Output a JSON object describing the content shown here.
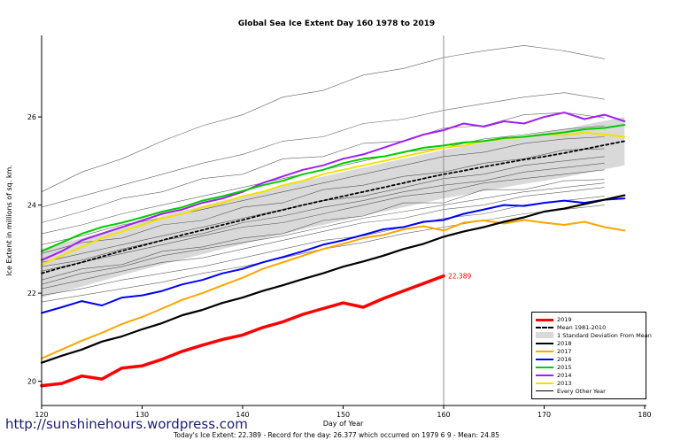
{
  "page": {
    "title": "Global Sea Ice Extent Day 160 1978 to 2019",
    "footer_url": "http://sunshinehours.wordpress.com",
    "caption": "Today's Ice Extent: 22.389 - Record for the day: 26.377 which occurred on 1979 6 9 - Mean: 24.85"
  },
  "chart_data": {
    "type": "line",
    "title": "Global Sea Ice Extent Day 160 1978 to 2019",
    "xlabel": "Day of Year",
    "ylabel": "Ice Extent in millions of sq. km.",
    "xlim": [
      120,
      180
    ],
    "ylim": [
      19.45,
      27.85
    ],
    "xticks": [
      120,
      130,
      140,
      150,
      160,
      170,
      180
    ],
    "yticks": [
      20,
      22,
      24,
      26
    ],
    "grid": false,
    "legend_position": "bottom-right",
    "vline_x": 160,
    "annotation": {
      "x": 160,
      "y": 22.389,
      "text": "22.389",
      "color": "#ff0000"
    },
    "band": {
      "label": "1 Standard Deviation From Mean",
      "from_series": "Mean 1981-2010",
      "half_width": 0.55,
      "color": "#d9d9d9"
    },
    "background_style": {
      "color": "#2b2b2b",
      "width": 0.6,
      "opacity": 0.75,
      "label": "Every Other Year"
    },
    "draw_order": [
      "Mean 1981-2010",
      "2013",
      "2014",
      "2015",
      "2016",
      "2017",
      "2018",
      "2019"
    ],
    "series": [
      {
        "name": "2019",
        "color": "#ff0000",
        "width": 3.5,
        "x_start": 120,
        "x_step": 2,
        "values": [
          19.9,
          19.95,
          20.12,
          20.05,
          20.3,
          20.35,
          20.5,
          20.68,
          20.82,
          20.95,
          21.05,
          21.22,
          21.35,
          21.52,
          21.65,
          21.78,
          21.68,
          21.88,
          22.05,
          22.22,
          22.389
        ]
      },
      {
        "name": "Mean 1981-2010",
        "color": "#000000",
        "width": 1.8,
        "dash": "3,3",
        "x_start": 120,
        "x_step": 2,
        "values": [
          22.45,
          22.58,
          22.7,
          22.83,
          22.96,
          23.08,
          23.2,
          23.32,
          23.43,
          23.55,
          23.66,
          23.78,
          23.89,
          24.0,
          24.1,
          24.2,
          24.3,
          24.4,
          24.5,
          24.6,
          24.7,
          24.78,
          24.87,
          24.95,
          25.03,
          25.1,
          25.18,
          25.27,
          25.36,
          25.45
        ]
      },
      {
        "name": "2018",
        "color": "#000000",
        "width": 2.2,
        "x_start": 120,
        "x_step": 2,
        "values": [
          20.42,
          20.58,
          20.72,
          20.9,
          21.02,
          21.18,
          21.32,
          21.5,
          21.62,
          21.78,
          21.9,
          22.05,
          22.18,
          22.32,
          22.45,
          22.6,
          22.72,
          22.85,
          23.0,
          23.12,
          23.28,
          23.4,
          23.5,
          23.62,
          23.72,
          23.85,
          23.92,
          24.02,
          24.12,
          24.22
        ]
      },
      {
        "name": "2017",
        "color": "#ffa500",
        "width": 2,
        "x_start": 120,
        "x_step": 2,
        "values": [
          20.52,
          20.72,
          20.92,
          21.1,
          21.3,
          21.46,
          21.65,
          21.85,
          22.0,
          22.18,
          22.35,
          22.55,
          22.7,
          22.85,
          23.0,
          23.12,
          23.25,
          23.32,
          23.45,
          23.52,
          23.42,
          23.6,
          23.65,
          23.58,
          23.66,
          23.6,
          23.55,
          23.62,
          23.5,
          23.42
        ]
      },
      {
        "name": "2016",
        "color": "#0000ff",
        "width": 2,
        "x_start": 120,
        "x_step": 2,
        "values": [
          21.55,
          21.68,
          21.82,
          21.72,
          21.9,
          21.95,
          22.05,
          22.2,
          22.3,
          22.45,
          22.55,
          22.7,
          22.82,
          22.95,
          23.1,
          23.2,
          23.32,
          23.45,
          23.5,
          23.62,
          23.66,
          23.8,
          23.9,
          24.0,
          23.98,
          24.05,
          24.1,
          24.05,
          24.12,
          24.15
        ]
      },
      {
        "name": "2015",
        "color": "#00cc00",
        "width": 2,
        "x_start": 120,
        "x_step": 2,
        "values": [
          22.95,
          23.15,
          23.35,
          23.5,
          23.6,
          23.72,
          23.85,
          23.95,
          24.1,
          24.2,
          24.32,
          24.45,
          24.55,
          24.7,
          24.8,
          24.95,
          25.05,
          25.1,
          25.2,
          25.3,
          25.35,
          25.42,
          25.45,
          25.52,
          25.55,
          25.6,
          25.65,
          25.72,
          25.75,
          25.82
        ]
      },
      {
        "name": "2014",
        "color": "#a020f0",
        "width": 2,
        "x_start": 120,
        "x_step": 2,
        "values": [
          22.75,
          22.95,
          23.2,
          23.35,
          23.5,
          23.65,
          23.8,
          23.9,
          24.05,
          24.15,
          24.3,
          24.5,
          24.65,
          24.8,
          24.9,
          25.05,
          25.15,
          25.3,
          25.45,
          25.6,
          25.7,
          25.85,
          25.78,
          25.9,
          25.85,
          26.0,
          26.1,
          25.95,
          26.05,
          25.9
        ]
      },
      {
        "name": "2013",
        "color": "#f5e000",
        "width": 2,
        "x_start": 120,
        "x_step": 2,
        "values": [
          22.65,
          22.85,
          23.05,
          23.25,
          23.4,
          23.55,
          23.7,
          23.8,
          23.95,
          24.05,
          24.2,
          24.3,
          24.45,
          24.55,
          24.7,
          24.8,
          24.9,
          25.0,
          25.1,
          25.2,
          25.3,
          25.35,
          25.45,
          25.5,
          25.55,
          25.6,
          25.58,
          25.65,
          25.6,
          25.55
        ]
      }
    ],
    "background_series": [
      {
        "x_start": 120,
        "x_step": 4,
        "values": [
          24.3,
          24.75,
          25.05,
          25.45,
          25.8,
          26.05,
          26.45,
          26.6,
          26.95,
          27.1,
          27.35,
          27.5,
          27.62,
          27.5,
          27.32
        ]
      },
      {
        "x_start": 120,
        "x_step": 4,
        "values": [
          23.95,
          24.2,
          24.45,
          24.7,
          24.95,
          25.15,
          25.45,
          25.55,
          25.85,
          25.95,
          26.15,
          26.3,
          26.45,
          26.55,
          26.4
        ]
      },
      {
        "x_start": 120,
        "x_step": 4,
        "values": [
          23.6,
          23.85,
          24.15,
          24.3,
          24.6,
          24.7,
          25.05,
          25.1,
          25.4,
          25.45,
          25.75,
          25.8,
          26.05,
          26.1,
          25.98
        ]
      },
      {
        "x_start": 120,
        "x_step": 4,
        "values": [
          23.35,
          23.55,
          23.8,
          24.0,
          24.2,
          24.4,
          24.6,
          24.8,
          25.0,
          25.2,
          25.3,
          25.5,
          25.6,
          25.72,
          25.8
        ]
      },
      {
        "x_start": 120,
        "x_step": 4,
        "values": [
          23.1,
          23.3,
          23.55,
          23.7,
          23.9,
          24.1,
          24.3,
          24.5,
          24.7,
          24.9,
          25.1,
          25.2,
          25.4,
          25.5,
          25.55
        ]
      },
      {
        "x_start": 120,
        "x_step": 4,
        "values": [
          22.9,
          23.15,
          23.25,
          23.55,
          23.65,
          23.95,
          24.05,
          24.35,
          24.45,
          24.65,
          24.75,
          24.95,
          25.05,
          25.25,
          25.28
        ]
      },
      {
        "x_start": 120,
        "x_step": 4,
        "values": [
          22.7,
          22.9,
          23.1,
          23.3,
          23.5,
          23.7,
          23.9,
          24.1,
          24.2,
          24.4,
          24.6,
          24.7,
          24.9,
          25.0,
          25.1
        ]
      },
      {
        "x_start": 120,
        "x_step": 4,
        "values": [
          22.5,
          22.7,
          22.9,
          23.1,
          23.3,
          23.5,
          23.6,
          23.8,
          24.0,
          24.2,
          24.3,
          24.5,
          24.6,
          24.7,
          24.8
        ]
      },
      {
        "x_start": 120,
        "x_step": 4,
        "values": [
          22.3,
          22.55,
          22.65,
          22.95,
          23.05,
          23.25,
          23.35,
          23.65,
          23.75,
          24.05,
          24.05,
          24.35,
          24.35,
          24.55,
          24.58
        ]
      },
      {
        "x_start": 120,
        "x_step": 4,
        "values": [
          22.1,
          22.3,
          22.5,
          22.7,
          22.8,
          23.0,
          23.2,
          23.4,
          23.6,
          23.7,
          23.9,
          24.0,
          24.2,
          24.3,
          24.4
        ]
      },
      {
        "x_start": 120,
        "x_step": 4,
        "values": [
          21.95,
          22.1,
          22.3,
          22.45,
          22.6,
          22.8,
          23.0,
          23.2,
          23.3,
          23.5,
          23.7,
          23.8,
          24.0,
          24.1,
          24.2
        ]
      },
      {
        "x_start": 120,
        "x_step": 4,
        "values": [
          21.8,
          21.95,
          22.1,
          22.25,
          22.45,
          22.6,
          22.8,
          23.0,
          23.15,
          23.35,
          23.5,
          23.65,
          23.8,
          23.9,
          24.0
        ]
      },
      {
        "x_start": 120,
        "x_step": 4,
        "values": [
          22.2,
          22.45,
          22.6,
          22.85,
          23.0,
          23.15,
          23.3,
          23.5,
          23.7,
          23.85,
          24.0,
          24.15,
          24.3,
          24.4,
          24.5
        ]
      },
      {
        "x_start": 120,
        "x_step": 4,
        "values": [
          22.6,
          22.75,
          23.0,
          23.2,
          23.35,
          23.6,
          23.75,
          23.95,
          24.1,
          24.3,
          24.45,
          24.55,
          24.75,
          24.85,
          24.95
        ]
      }
    ],
    "legend": {
      "items": [
        {
          "label": "2019",
          "swatch": "line",
          "color": "#ff0000",
          "thick": 3
        },
        {
          "label": "Mean 1981-2010",
          "swatch": "dashed-line",
          "color": "#000000",
          "thick": 2
        },
        {
          "label": "1 Standard Deviation From Mean",
          "swatch": "box",
          "color": "#d9d9d9"
        },
        {
          "label": "2018",
          "swatch": "line",
          "color": "#000000",
          "thick": 2
        },
        {
          "label": "2017",
          "swatch": "line",
          "color": "#ffa500",
          "thick": 2
        },
        {
          "label": "2016",
          "swatch": "line",
          "color": "#0000ff",
          "thick": 2
        },
        {
          "label": "2015",
          "swatch": "line",
          "color": "#00cc00",
          "thick": 2
        },
        {
          "label": "2014",
          "swatch": "line",
          "color": "#a020f0",
          "thick": 2
        },
        {
          "label": "2013",
          "swatch": "line",
          "color": "#f5e000",
          "thick": 2
        },
        {
          "label": "Every Other Year",
          "swatch": "line",
          "color": "#000000",
          "thick": 1
        }
      ]
    }
  }
}
